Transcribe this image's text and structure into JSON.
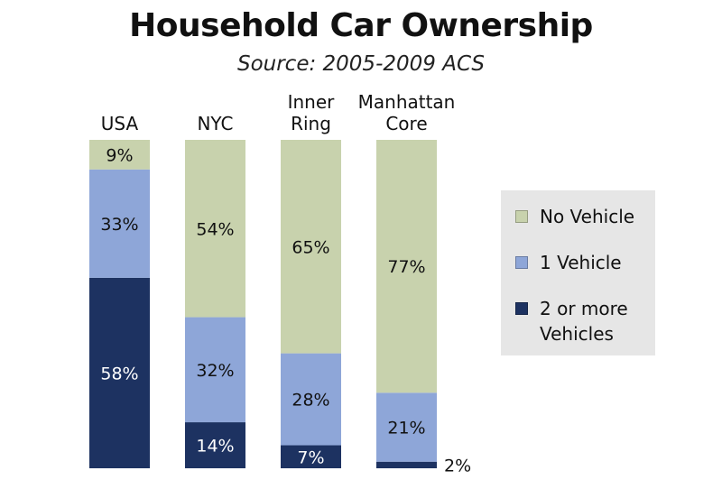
{
  "title": "Household Car Ownership",
  "subtitle": "Source: 2005-2009 ACS",
  "colors": {
    "no_vehicle": "#c8d2ad",
    "one_vehicle": "#8ea6d8",
    "two_plus": "#1d3261",
    "light_text": "#ffffff",
    "dark_text": "#111111"
  },
  "legend": [
    {
      "key": "no_vehicle",
      "label": "No Vehicle"
    },
    {
      "key": "one_vehicle",
      "label": "1 Vehicle"
    },
    {
      "key": "two_plus",
      "label": "2 or more Vehicles"
    }
  ],
  "chart_data": {
    "type": "bar",
    "stacked": true,
    "percent": true,
    "title": "Household Car Ownership",
    "subtitle": "Source: 2005-2009 ACS",
    "categories": [
      [
        "USA"
      ],
      [
        "NYC"
      ],
      [
        "Inner",
        "Ring"
      ],
      [
        "Manhattan",
        "Core"
      ]
    ],
    "series": [
      {
        "name": "2 or more Vehicles",
        "key": "two_plus",
        "values": [
          58,
          14,
          7,
          2
        ],
        "labels": [
          "58%",
          "14%",
          "7%",
          "2%"
        ]
      },
      {
        "name": "1 Vehicle",
        "key": "one_vehicle",
        "values": [
          33,
          32,
          28,
          21
        ],
        "labels": [
          "33%",
          "32%",
          "28%",
          "21%"
        ]
      },
      {
        "name": "No Vehicle",
        "key": "no_vehicle",
        "values": [
          9,
          54,
          65,
          77
        ],
        "labels": [
          "9%",
          "54%",
          "65%",
          "77%"
        ]
      }
    ],
    "ylim": [
      0,
      100
    ],
    "legend_position": "right"
  }
}
